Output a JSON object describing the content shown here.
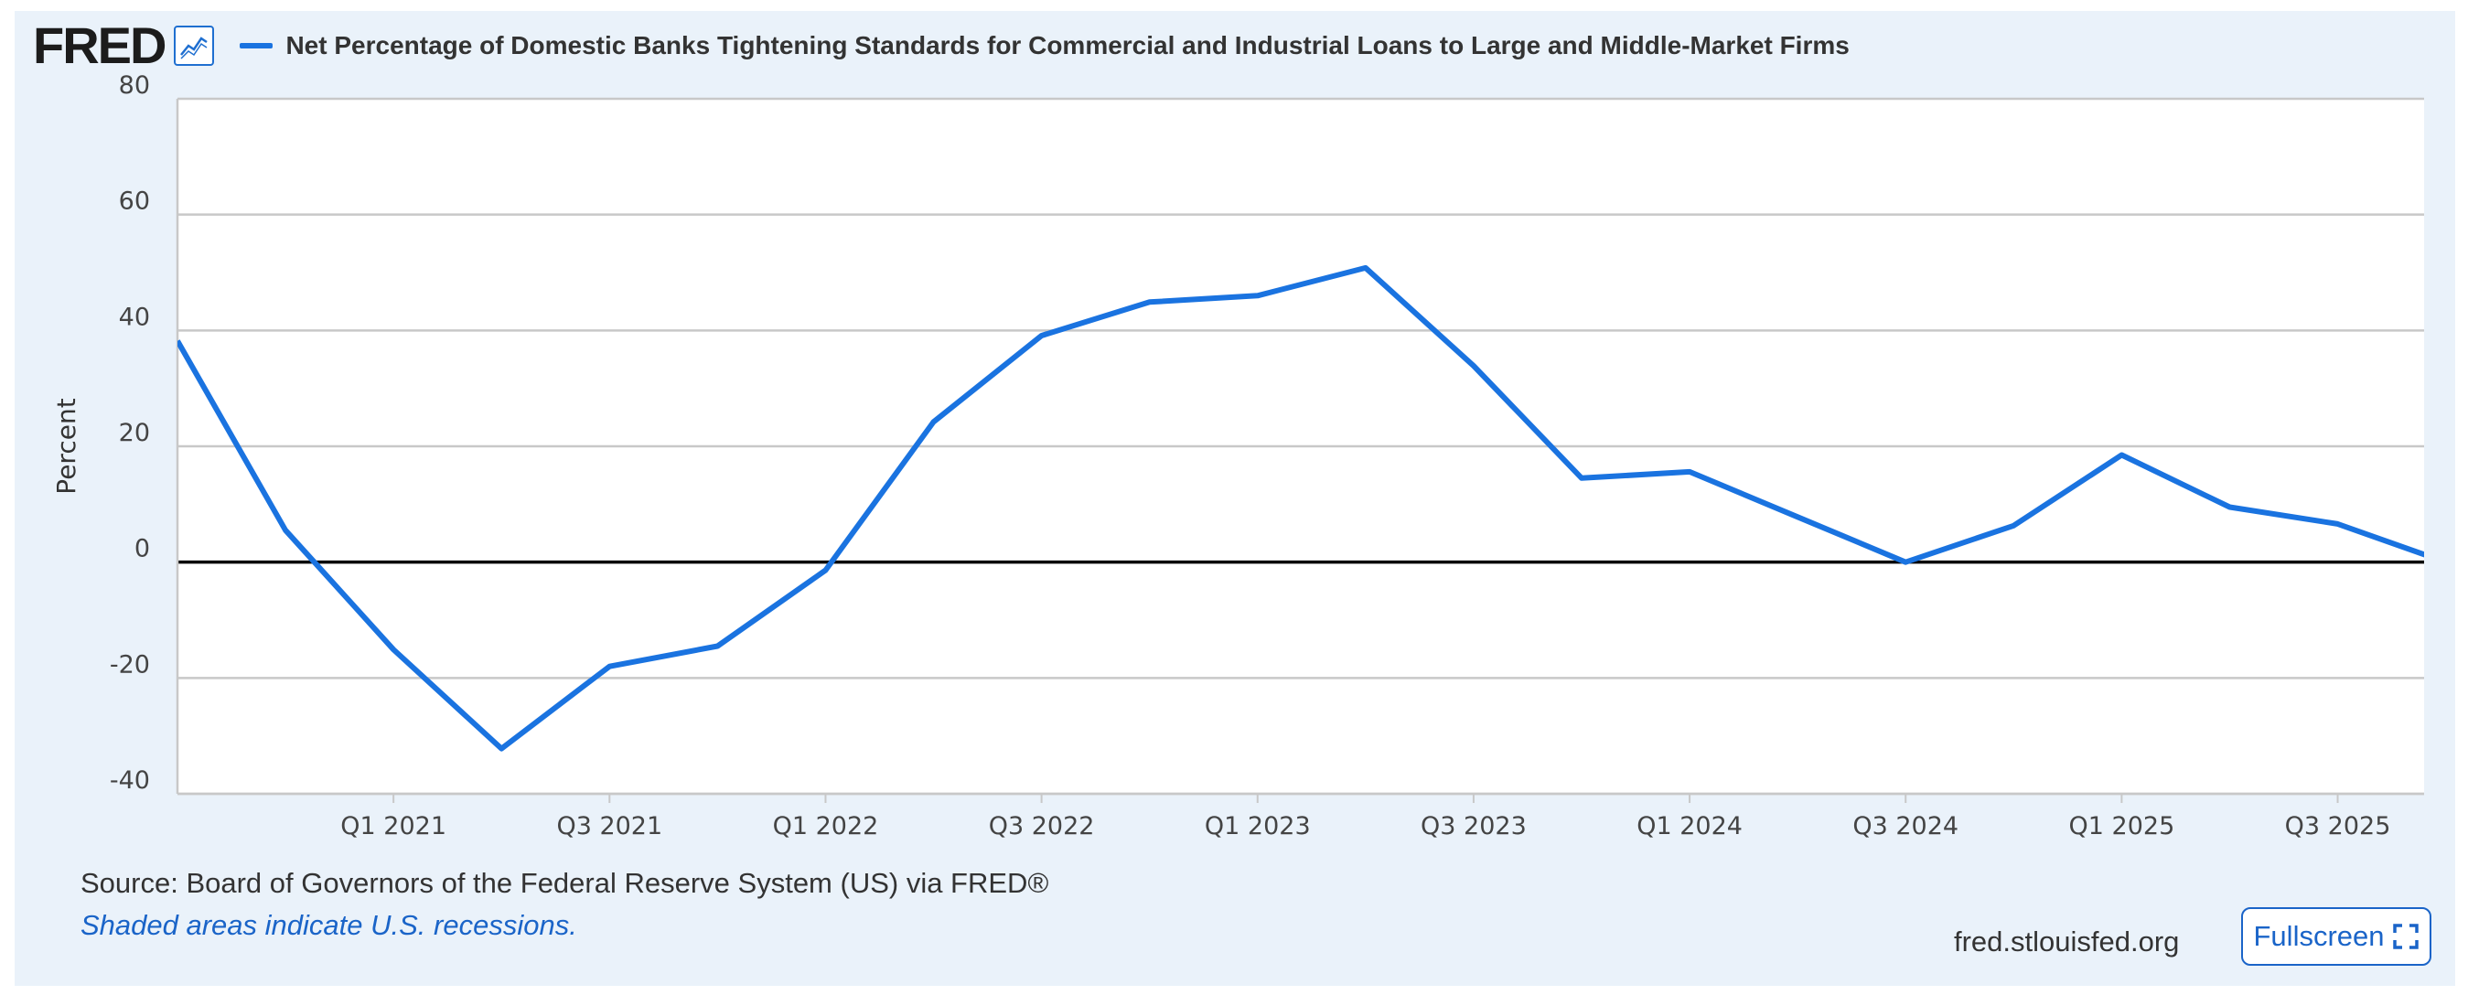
{
  "header": {
    "logo_text": "FRED",
    "title": "Net Percentage of Domestic Banks Tightening Standards for Commercial and Industrial Loans to Large and Middle-Market Firms"
  },
  "colors": {
    "series": "#1a73e0",
    "panel_background": "#eaf2fa",
    "link": "#1a64c8"
  },
  "icons": {
    "graph": "graph-icon",
    "fullscreen": "expand-icon"
  },
  "chart_data": {
    "type": "line",
    "title": "Net Percentage of Domestic Banks Tightening Standards for Commercial and Industrial Loans to Large and Middle-Market Firms",
    "ylabel": "Percent",
    "xlabel": "",
    "ylim": [
      -40,
      80
    ],
    "yticks": [
      80,
      60,
      40,
      20,
      0,
      -20,
      -40
    ],
    "x_ticks": [
      "Q1 2021",
      "Q3 2021",
      "Q1 2022",
      "Q3 2022",
      "Q1 2023",
      "Q3 2023",
      "Q1 2024",
      "Q3 2024",
      "Q1 2025",
      "Q3 2025"
    ],
    "x": [
      "Q3 2020",
      "Q4 2020",
      "Q1 2021",
      "Q2 2021",
      "Q3 2021",
      "Q4 2021",
      "Q1 2022",
      "Q2 2022",
      "Q3 2022",
      "Q4 2022",
      "Q1 2023",
      "Q2 2023",
      "Q3 2023",
      "Q4 2023",
      "Q1 2024",
      "Q2 2024",
      "Q3 2024",
      "Q4 2024",
      "Q1 2025",
      "Q2 2025",
      "Q3 2025",
      "Q4 2025"
    ],
    "series": [
      {
        "values": [
          38.2,
          5.5,
          -15.1,
          -32.2,
          -18.0,
          -14.5,
          -1.4,
          24.2,
          39.1,
          44.9,
          46.0,
          50.8,
          33.9,
          14.5,
          15.6,
          7.8,
          0.0,
          6.3,
          18.5,
          9.5,
          6.6,
          0.0
        ]
      }
    ],
    "legend": "top-left",
    "grid": true,
    "zero_line": true
  },
  "footer": {
    "source": "Source: Board of Governors of the Federal Reserve System (US) via FRED®",
    "recession_note": "Shaded areas indicate U.S. recessions.",
    "site": "fred.stlouisfed.org",
    "fullscreen_label": "Fullscreen"
  }
}
